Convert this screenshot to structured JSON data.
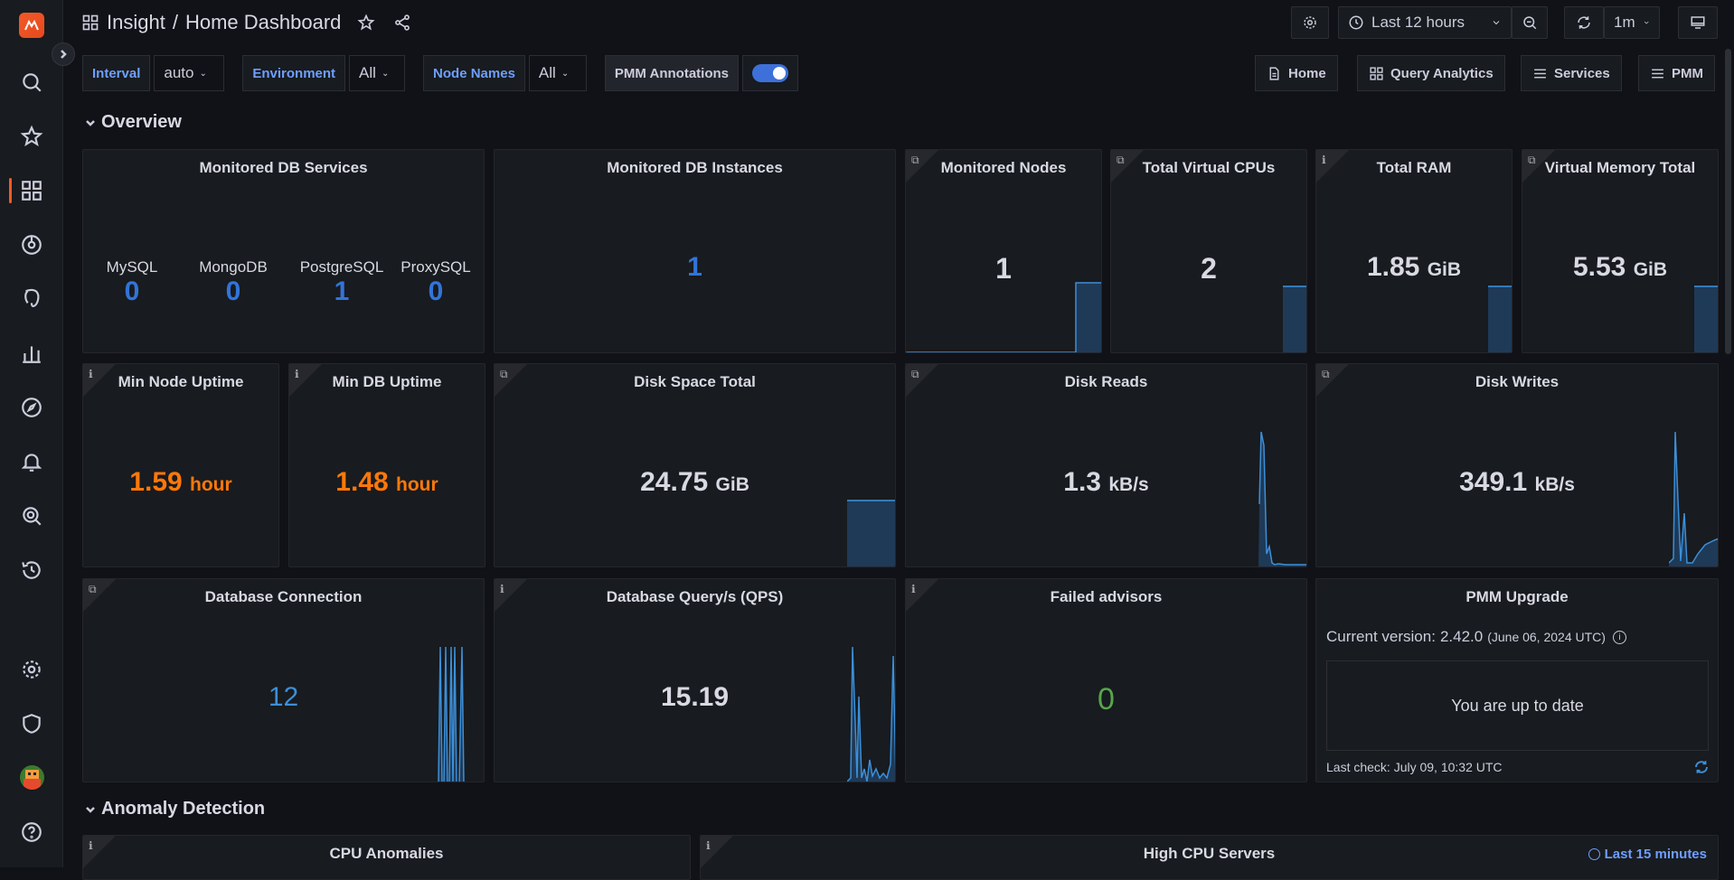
{
  "breadcrumb": {
    "folder": "Insight",
    "separator": "/",
    "title": "Home Dashboard"
  },
  "toolbar": {
    "time_range": "Last 12 hours",
    "refresh_interval": "1m"
  },
  "variables": [
    {
      "label": "Interval",
      "value": "auto"
    },
    {
      "label": "Environment",
      "value": "All"
    },
    {
      "label": "Node Names",
      "value": "All"
    }
  ],
  "annotations": {
    "label": "PMM Annotations",
    "enabled": true
  },
  "links": {
    "home": "Home",
    "qan": "Query Analytics",
    "services": "Services",
    "pmm": "PMM"
  },
  "rows": {
    "overview": "Overview",
    "anomaly": "Anomaly Detection"
  },
  "panels": {
    "monitored_db_services": {
      "title": "Monitored DB Services",
      "items": [
        {
          "name": "MySQL",
          "value": "0"
        },
        {
          "name": "MongoDB",
          "value": "0"
        },
        {
          "name": "PostgreSQL",
          "value": "1"
        },
        {
          "name": "ProxySQL",
          "value": "0"
        }
      ]
    },
    "monitored_db_instances": {
      "title": "Monitored DB Instances",
      "value": "1"
    },
    "monitored_nodes": {
      "title": "Monitored Nodes",
      "value": "1"
    },
    "total_vcpus": {
      "title": "Total Virtual CPUs",
      "value": "2"
    },
    "total_ram": {
      "title": "Total RAM",
      "value": "1.85",
      "unit": "GiB"
    },
    "virtual_memory": {
      "title": "Virtual Memory Total",
      "value": "5.53",
      "unit": "GiB"
    },
    "min_node_uptime": {
      "title": "Min Node Uptime",
      "value": "1.59",
      "unit": "hour"
    },
    "min_db_uptime": {
      "title": "Min DB Uptime",
      "value": "1.48",
      "unit": "hour"
    },
    "disk_space": {
      "title": "Disk Space Total",
      "value": "24.75",
      "unit": "GiB"
    },
    "disk_reads": {
      "title": "Disk Reads",
      "value": "1.3",
      "unit": "kB/s"
    },
    "disk_writes": {
      "title": "Disk Writes",
      "value": "349.1",
      "unit": "kB/s"
    },
    "db_connection": {
      "title": "Database Connection",
      "value": "12"
    },
    "db_qps": {
      "title": "Database Query/s (QPS)",
      "value": "15.19"
    },
    "failed_advisors": {
      "title": "Failed advisors",
      "value": "0"
    },
    "pmm_upgrade": {
      "title": "PMM Upgrade",
      "current_label": "Current version:",
      "version": "2.42.0",
      "date": "(June 06, 2024 UTC)",
      "status": "You are up to date",
      "last_check": "Last check: July 09, 10:32 UTC"
    },
    "cpu_anomalies": {
      "title": "CPU Anomalies"
    },
    "high_cpu_servers": {
      "title": "High CPU Servers",
      "time_override": "Last 15 minutes"
    }
  },
  "colors": {
    "blue_value": "#3274d9",
    "orange_value": "#ff780a",
    "green_value": "#56a64b",
    "accent": "#f05a28"
  }
}
